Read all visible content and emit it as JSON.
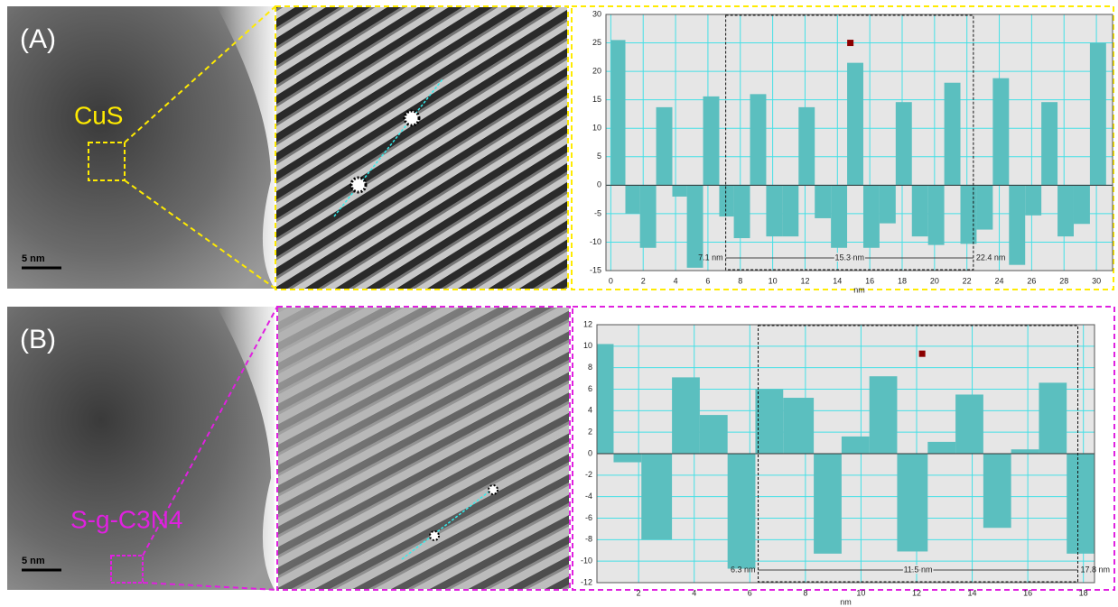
{
  "panels": [
    {
      "label": "(A)",
      "material": "CuS",
      "scale_bar": "5 nm"
    },
    {
      "label": "(B)",
      "material": "S-g-C3N4",
      "scale_bar": "5 nm"
    }
  ],
  "chart_data": [
    {
      "type": "histogram",
      "x_label": "nm",
      "color": "#5bbfbf",
      "grid": true,
      "bins": [
        0,
        0.9,
        1.8,
        2.8,
        3.8,
        4.7,
        5.7,
        6.7,
        7.6,
        8.6,
        9.6,
        10.6,
        11.6,
        12.6,
        13.6,
        14.6,
        15.6,
        16.6,
        17.6,
        18.6,
        19.6,
        20.6,
        21.6,
        22.6,
        23.6,
        24.6,
        25.6,
        26.6,
        27.6,
        28.6,
        29.6,
        30.6
      ],
      "values": [
        25.5,
        -5,
        -11,
        13.7,
        -2,
        -14.5,
        15.6,
        -5.5,
        -9.3,
        16,
        -9,
        -9,
        13.7,
        -5.8,
        -11,
        21.5,
        -11,
        -6.7,
        14.6,
        -9,
        -10.5,
        18,
        -10.3,
        -7.8,
        18.8,
        -14,
        -5.3,
        14.6,
        -9,
        -6.8,
        25
      ],
      "xlim": [
        -0.3,
        31
      ],
      "ylim": [
        -15,
        30
      ],
      "xticks": [
        0,
        2,
        4,
        6,
        8,
        10,
        12,
        14,
        16,
        18,
        20,
        22,
        24,
        26,
        28,
        30
      ],
      "yticks": [
        -15,
        -10,
        -5,
        0,
        5,
        10,
        15,
        20,
        25,
        30
      ],
      "selection": [
        {
          "value": 7.1,
          "label": "7.1 nm"
        },
        {
          "value": 22.4,
          "label": "22.4 nm"
        }
      ],
      "selection_width": "15.3 nm",
      "point": {
        "x": 14.8,
        "y": 25,
        "color": "#8b0000"
      }
    },
    {
      "type": "histogram",
      "x_label": "nm",
      "color": "#5bbfbf",
      "grid": true,
      "bins": [
        0.5,
        1.1,
        2.1,
        3.2,
        4.2,
        5.2,
        6.2,
        7.2,
        8.3,
        9.3,
        10.3,
        11.3,
        12.4,
        13.4,
        14.4,
        15.4,
        16.4,
        17.4,
        18.4
      ],
      "values": [
        10.2,
        -0.8,
        -8,
        7.1,
        3.6,
        -10.7,
        6,
        5.2,
        -9.3,
        1.6,
        7.2,
        -9.1,
        1.1,
        5.5,
        -6.9,
        0.4,
        6.6,
        -9.3
      ],
      "xlim": [
        0.5,
        18.4
      ],
      "ylim": [
        -12,
        12
      ],
      "xticks": [
        2,
        4,
        6,
        8,
        10,
        12,
        14,
        16,
        18
      ],
      "yticks": [
        -12,
        -10,
        -8,
        -6,
        -4,
        -2,
        0,
        2,
        4,
        6,
        8,
        10,
        12
      ],
      "selection": [
        {
          "value": 6.3,
          "label": "6.3 nm"
        },
        {
          "value": 17.8,
          "label": "17.8 nm"
        }
      ],
      "selection_width": "11.5 nm",
      "point": {
        "x": 12.2,
        "y": 9.3,
        "color": "#8b0000"
      }
    }
  ]
}
